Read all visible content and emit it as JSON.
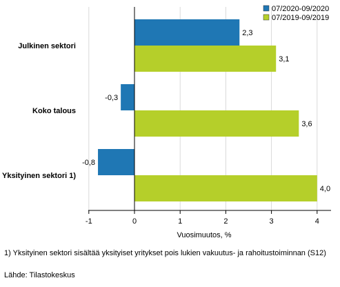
{
  "chart_data": {
    "type": "bar",
    "orientation": "horizontal",
    "categories": [
      "Julkinen sektori",
      "Koko talous",
      "Yksityinen sektori 1)"
    ],
    "series": [
      {
        "name": "07/2020-09/2020",
        "color": "#1f77b4",
        "values": [
          2.3,
          -0.3,
          -0.8
        ],
        "labels": [
          "2,3",
          "-0,3",
          "-0,8"
        ]
      },
      {
        "name": "07/2019-09/2019",
        "color": "#b5cf2a",
        "values": [
          3.1,
          3.6,
          4.0
        ],
        "labels": [
          "3,1",
          "3,6",
          "4,0"
        ]
      }
    ],
    "xlabel": "Vuosimuutos, %",
    "xlim": [
      -1,
      4.5
    ],
    "xticks": [
      -1,
      0,
      1,
      2,
      3,
      4
    ],
    "xtick_labels": [
      "-1",
      "0",
      "1",
      "2",
      "3",
      "4"
    ],
    "grid": "vertical",
    "legend_position": "top-right"
  },
  "footnote": "1) Yksityinen sektori sisältää yksityiset yritykset pois lukien vakuutus- ja rahoitustoiminnan (S12)",
  "source": "Lähde: Tilastokeskus",
  "colors": {
    "series1": "#1f77b4",
    "series2": "#b5cf2a",
    "grid": "#d9d9d9",
    "axis": "#000000"
  }
}
